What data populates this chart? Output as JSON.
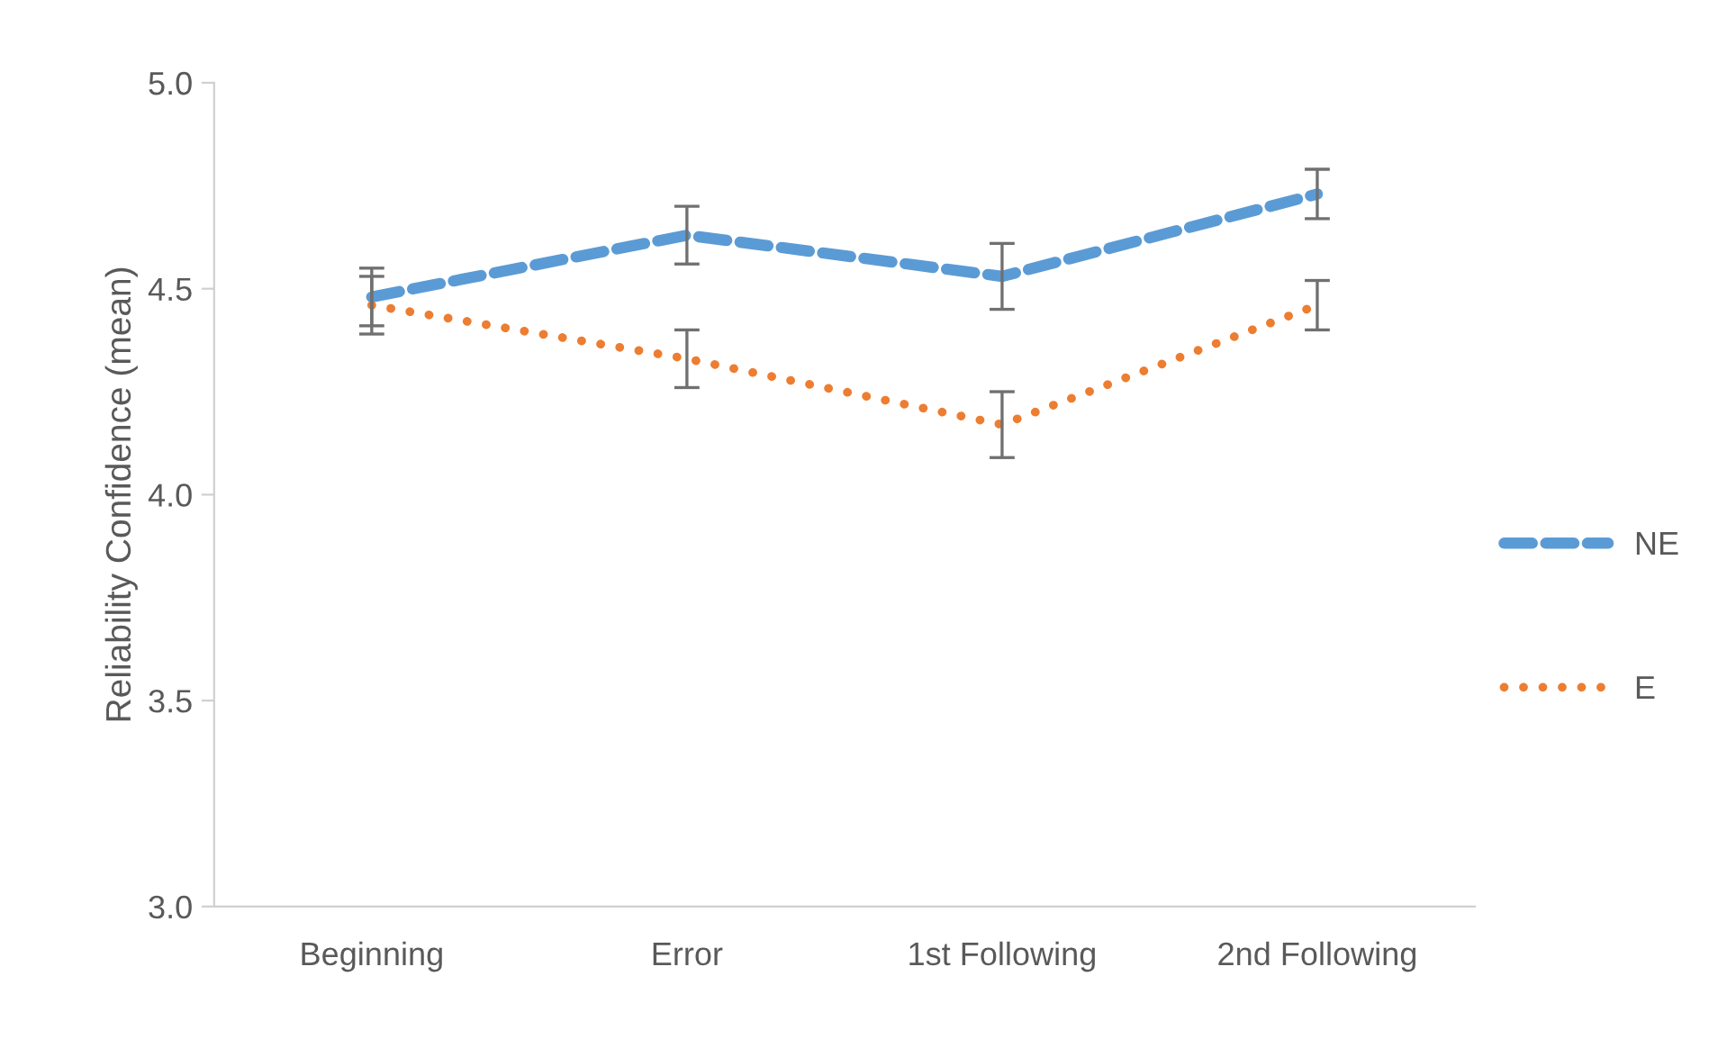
{
  "chart_data": {
    "type": "line",
    "ylabel": "Reliability Confidence (mean)",
    "categories": [
      "Beginning",
      "Error",
      "1st Following",
      "2nd Following"
    ],
    "series": [
      {
        "name": "NE",
        "color": "#5b9bd5",
        "line_style": "dashed",
        "values": [
          4.48,
          4.63,
          4.53,
          4.73
        ],
        "errors": [
          0.07,
          0.07,
          0.08,
          0.06
        ]
      },
      {
        "name": "E",
        "color": "#ed7d31",
        "line_style": "dotted",
        "values": [
          4.46,
          4.33,
          4.17,
          4.46
        ],
        "errors": [
          0.07,
          0.07,
          0.08,
          0.06
        ]
      }
    ],
    "ylim": [
      3.0,
      5.0
    ],
    "yticks": [
      {
        "value": 3.0,
        "label": "3.0"
      },
      {
        "value": 3.5,
        "label": "3.5"
      },
      {
        "value": 4.0,
        "label": "4.0"
      },
      {
        "value": 4.5,
        "label": "4.5"
      },
      {
        "value": 5.0,
        "label": "5.0"
      }
    ],
    "grid": false,
    "legend": "right"
  }
}
